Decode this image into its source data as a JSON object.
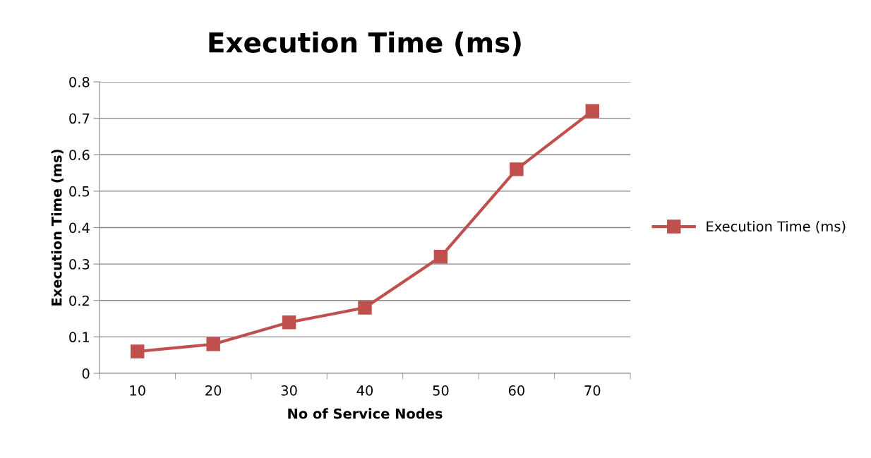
{
  "chart_data": {
    "type": "line",
    "title": "Execution Time (ms)",
    "xlabel": "No of Service Nodes",
    "ylabel": "Execution Time (ms)",
    "categories": [
      "10",
      "20",
      "30",
      "40",
      "50",
      "60",
      "70"
    ],
    "series": [
      {
        "name": "Execution Time (ms)",
        "color": "#c0504d",
        "values": [
          0.06,
          0.08,
          0.14,
          0.18,
          0.32,
          0.56,
          0.72
        ]
      }
    ],
    "ylim": [
      0,
      0.8
    ],
    "yticks": [
      {
        "value": 0,
        "label": "0"
      },
      0.1,
      0.2,
      0.3,
      0.4,
      0.5,
      0.6,
      0.7,
      0.8
    ],
    "grid": "y",
    "legend": "right",
    "marker": "square",
    "line_style": "solid"
  }
}
